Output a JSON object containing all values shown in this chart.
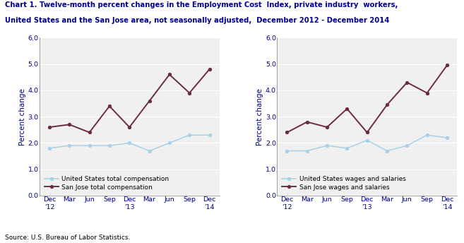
{
  "title_line1": "Chart 1. Twelve-month percent changes in the Employment Cost  Index, private industry  workers,",
  "title_line2": "United States and the San Jose area, not seasonally adjusted,  December 2012 - December 2014",
  "x_labels": [
    "Dec\n'12",
    "Mar",
    "Jun",
    "Sep",
    "Dec\n'13",
    "Mar",
    "Jun",
    "Sep",
    "Dec\n'14"
  ],
  "left_chart": {
    "ylabel": "Percent change",
    "us_vals": [
      1.8,
      1.9,
      1.9,
      1.9,
      2.0,
      1.7,
      2.0,
      2.3,
      2.3
    ],
    "sj_vals": [
      2.6,
      2.7,
      2.4,
      3.4,
      2.6,
      3.6,
      4.6,
      3.9,
      4.8
    ],
    "us_label": "United States total compensation",
    "sj_label": "San Jose total compensation"
  },
  "right_chart": {
    "ylabel": "Percent change",
    "us_vals": [
      1.7,
      1.7,
      1.9,
      1.8,
      2.1,
      1.7,
      1.9,
      2.3,
      2.2
    ],
    "sj_vals": [
      2.4,
      2.8,
      2.6,
      3.3,
      2.4,
      3.45,
      4.3,
      3.9,
      4.95
    ],
    "us_label": "United States wages and salaries",
    "sj_label": "San Jose wages and salaries"
  },
  "us_color": "#a8d0e8",
  "sj_color": "#6B2D3E",
  "ylim": [
    0.0,
    6.0
  ],
  "yticks": [
    0.0,
    1.0,
    2.0,
    3.0,
    4.0,
    5.0,
    6.0
  ],
  "source": "Source: U.S. Bureau of Labor Statistics.",
  "bg_color": "#ffffff",
  "plot_bg": "#f0f0f0",
  "title_color": "#00008B",
  "axis_label_color": "#00008B",
  "tick_label_color": "#00008B",
  "grid_color": "#ffffff",
  "title_fontsize": 7.2,
  "ylabel_fontsize": 7.5,
  "tick_fontsize": 6.8,
  "legend_fontsize": 6.5,
  "source_fontsize": 6.5
}
